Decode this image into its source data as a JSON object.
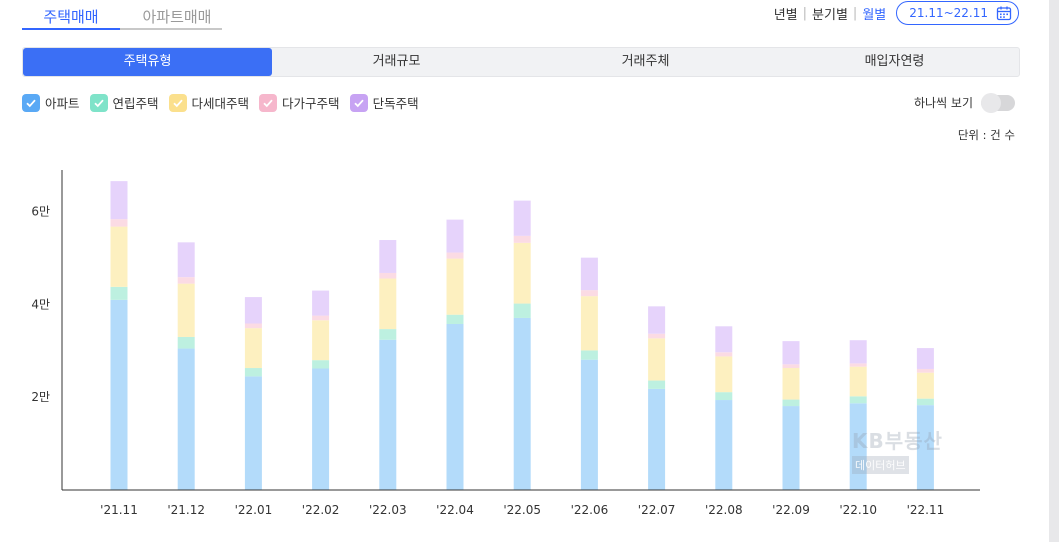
{
  "tabs": {
    "active": "주택매매",
    "inactive": "아파트매매"
  },
  "period": {
    "year": "년별",
    "quarter": "분기별",
    "month": "월별",
    "range": "21.11~22.11"
  },
  "segments": [
    "주택유형",
    "거래규모",
    "거래주체",
    "매입자연령"
  ],
  "legend": [
    {
      "label": "아파트",
      "color": "#5aa9f5"
    },
    {
      "label": "연립주택",
      "color": "#7fe3c9"
    },
    {
      "label": "다세대주택",
      "color": "#fbe08d"
    },
    {
      "label": "다가구주택",
      "color": "#f6b7cc"
    },
    {
      "label": "단독주택",
      "color": "#c7a3f3"
    }
  ],
  "toggle_label": "하나씩 보기",
  "unit": "단위 : 건 수",
  "watermark": {
    "title": "KB부동산",
    "sub": "데이터허브"
  },
  "chart_data": {
    "type": "bar",
    "stacked": true,
    "categories": [
      "'21.11",
      "'21.12",
      "'22.01",
      "'22.02",
      "'22.03",
      "'22.04",
      "'22.05",
      "'22.06",
      "'22.07",
      "'22.08",
      "'22.09",
      "'22.10",
      "'22.11"
    ],
    "y_ticks": [
      {
        "value": 20000,
        "label": "2만"
      },
      {
        "value": 40000,
        "label": "4만"
      },
      {
        "value": 60000,
        "label": "6만"
      }
    ],
    "ylim": [
      0,
      69000
    ],
    "series": [
      {
        "name": "아파트",
        "color": "#b3dbfa",
        "values": [
          41000,
          30500,
          24500,
          26200,
          32400,
          35800,
          37100,
          28100,
          21800,
          19400,
          18100,
          18700,
          18300
        ]
      },
      {
        "name": "연립주택",
        "color": "#bdf0e0",
        "values": [
          2800,
          2500,
          1800,
          1800,
          2300,
          2000,
          3100,
          2000,
          1800,
          1700,
          1400,
          1500,
          1400
        ]
      },
      {
        "name": "다세대주택",
        "color": "#fdf0c0",
        "values": [
          13000,
          11500,
          8600,
          8600,
          10900,
          12100,
          13100,
          11700,
          9100,
          7700,
          6800,
          6400,
          5600
        ]
      },
      {
        "name": "다가구주택",
        "color": "#fbdbe4",
        "values": [
          1600,
          1400,
          1000,
          1000,
          1200,
          1300,
          1500,
          1300,
          1000,
          900,
          800,
          700,
          800
        ]
      },
      {
        "name": "단독주택",
        "color": "#e6d3fb",
        "values": [
          8200,
          7500,
          5700,
          5400,
          7100,
          7100,
          7600,
          7000,
          5900,
          5600,
          5000,
          5000,
          4500
        ]
      }
    ]
  }
}
